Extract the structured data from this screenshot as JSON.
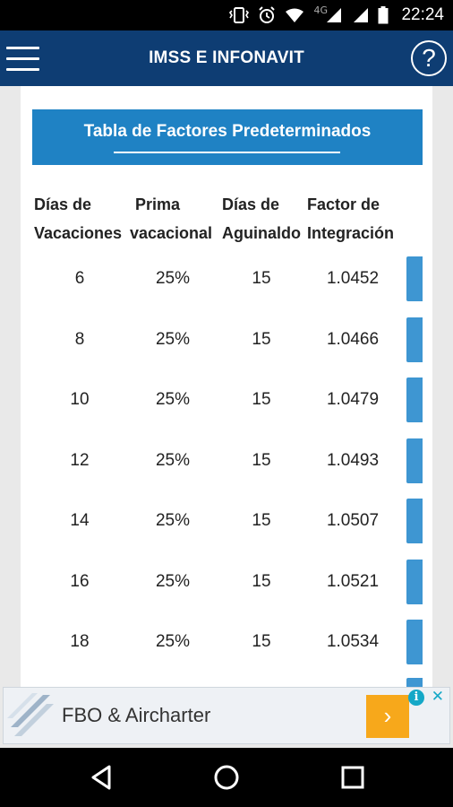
{
  "status_bar": {
    "network": "4G",
    "time": "22:24",
    "icons": [
      "vibrate-icon",
      "alarm-icon",
      "wifi-icon",
      "signal-icon",
      "signal-icon",
      "battery-icon"
    ]
  },
  "app_bar": {
    "title": "IMSS E INFONAVIT",
    "help_label": "?"
  },
  "table": {
    "title": "Tabla de Factores Predeterminados",
    "columns": [
      {
        "line1": "Días de",
        "line2": "Vacaciones"
      },
      {
        "line1": "Prima",
        "line2": "vacacional"
      },
      {
        "line1": "Días de",
        "line2": "Aguinaldo"
      },
      {
        "line1": "Factor de",
        "line2": "Integración"
      }
    ],
    "rows": [
      {
        "dias_vacaciones": "6",
        "prima": "25%",
        "aguinaldo": "15",
        "factor": "1.0452"
      },
      {
        "dias_vacaciones": "8",
        "prima": "25%",
        "aguinaldo": "15",
        "factor": "1.0466"
      },
      {
        "dias_vacaciones": "10",
        "prima": "25%",
        "aguinaldo": "15",
        "factor": "1.0479"
      },
      {
        "dias_vacaciones": "12",
        "prima": "25%",
        "aguinaldo": "15",
        "factor": "1.0493"
      },
      {
        "dias_vacaciones": "14",
        "prima": "25%",
        "aguinaldo": "15",
        "factor": "1.0507"
      },
      {
        "dias_vacaciones": "16",
        "prima": "25%",
        "aguinaldo": "15",
        "factor": "1.0521"
      },
      {
        "dias_vacaciones": "18",
        "prima": "25%",
        "aguinaldo": "15",
        "factor": "1.0534"
      }
    ]
  },
  "ad": {
    "text": "FBO & Aircharter",
    "arrow": "›",
    "info": "i",
    "close": "✕"
  },
  "colors": {
    "app_bar": "#0e3d73",
    "table_header": "#1f82c4",
    "row_tab": "#3e96d2",
    "ad_arrow": "#f7a81b"
  }
}
